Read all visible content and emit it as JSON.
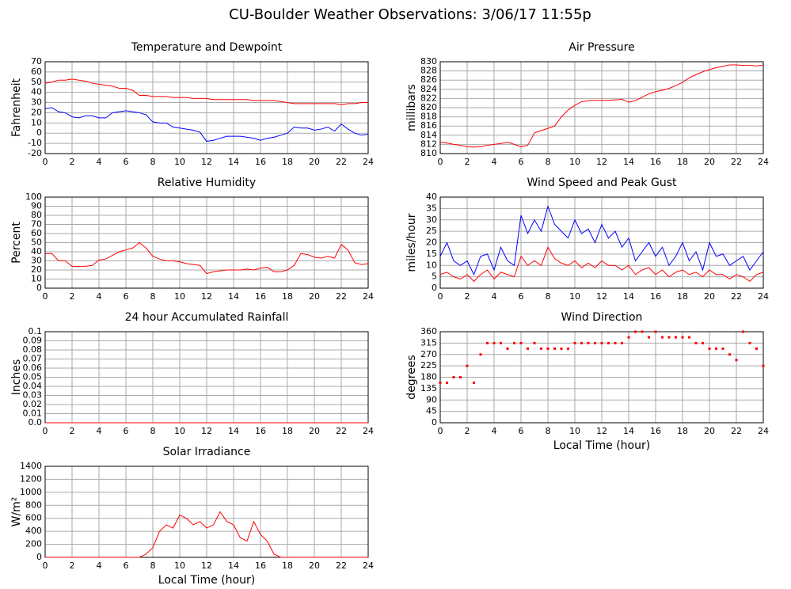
{
  "title": "CU-Boulder Weather Observations: 3/06/17 11:55p",
  "chart_data": [
    {
      "type": "line",
      "title": "Temperature and Dewpoint",
      "y_label": "Fahrenheit",
      "x": [
        0,
        0.5,
        1,
        1.5,
        2,
        2.5,
        3,
        3.5,
        4,
        4.5,
        5,
        5.5,
        6,
        6.5,
        7,
        7.5,
        8,
        8.5,
        9,
        9.5,
        10,
        10.5,
        11,
        11.5,
        12,
        12.5,
        13,
        13.5,
        14,
        14.5,
        15,
        15.5,
        16,
        16.5,
        17,
        17.5,
        18,
        18.5,
        19,
        19.5,
        20,
        20.5,
        21,
        21.5,
        22,
        22.5,
        23,
        23.5,
        24
      ],
      "series": [
        {
          "color": "#ff0000",
          "values": [
            49,
            50,
            52,
            52,
            53,
            52,
            51,
            49,
            48,
            47,
            46,
            44,
            44,
            42,
            37,
            37,
            36,
            36,
            36,
            35,
            35,
            35,
            34,
            34,
            34,
            33,
            33,
            33,
            33,
            33,
            33,
            32,
            32,
            32,
            32,
            31,
            30,
            29,
            29,
            29,
            29,
            29,
            29,
            29,
            28,
            29,
            29,
            30,
            30
          ]
        },
        {
          "color": "#0000ff",
          "values": [
            24,
            25,
            21,
            20,
            16,
            15,
            17,
            17,
            15,
            15,
            20,
            21,
            22,
            21,
            20,
            18,
            11,
            10,
            10,
            6,
            5,
            4,
            3,
            1,
            -8,
            -7,
            -5,
            -3,
            -3,
            -3,
            -4,
            -5,
            -7,
            -5,
            -4,
            -2,
            0,
            6,
            5,
            5,
            3,
            4,
            6,
            2,
            9,
            4,
            0,
            -2,
            -1
          ]
        }
      ],
      "xlim": [
        0,
        24
      ],
      "xticks": [
        0,
        2,
        4,
        6,
        8,
        10,
        12,
        14,
        16,
        18,
        20,
        22,
        24
      ],
      "ylim": [
        -20,
        70
      ],
      "yticks": [
        -20,
        -10,
        0,
        10,
        20,
        30,
        40,
        50,
        60,
        70
      ],
      "grid": true
    },
    {
      "type": "line",
      "title": "Air Pressure",
      "y_label": "millibars",
      "x": [
        0,
        0.5,
        1,
        1.5,
        2,
        2.5,
        3,
        3.5,
        4,
        4.5,
        5,
        5.5,
        6,
        6.5,
        7,
        7.5,
        8,
        8.5,
        9,
        9.5,
        10,
        10.5,
        11,
        11.5,
        12,
        12.5,
        13,
        13.5,
        14,
        14.5,
        15,
        15.5,
        16,
        16.5,
        17,
        17.5,
        18,
        18.5,
        19,
        19.5,
        20,
        20.5,
        21,
        21.5,
        22,
        22.5,
        23,
        23.5,
        24
      ],
      "series": [
        {
          "color": "#ff0000",
          "values": [
            812.5,
            812.3,
            812,
            811.8,
            811.5,
            811.4,
            811.5,
            811.8,
            812,
            812.2,
            812.5,
            812,
            811.5,
            811.8,
            814.5,
            815,
            815.5,
            816,
            818,
            819.5,
            820.5,
            821.3,
            821.5,
            821.6,
            821.6,
            821.6,
            821.7,
            821.8,
            821.2,
            821.5,
            822.3,
            823,
            823.5,
            823.8,
            824.2,
            824.8,
            825.5,
            826.5,
            827.2,
            827.8,
            828.3,
            828.7,
            829,
            829.3,
            829.3,
            829.2,
            829.2,
            829.1,
            829.3
          ]
        }
      ],
      "xlim": [
        0,
        24
      ],
      "xticks": [
        0,
        2,
        4,
        6,
        8,
        10,
        12,
        14,
        16,
        18,
        20,
        22,
        24
      ],
      "ylim": [
        810,
        830
      ],
      "yticks": [
        810,
        812,
        814,
        816,
        818,
        820,
        822,
        824,
        826,
        828,
        830
      ],
      "grid": true
    },
    {
      "type": "line",
      "title": "Relative Humidity",
      "y_label": "Percent",
      "x": [
        0,
        0.5,
        1,
        1.5,
        2,
        2.5,
        3,
        3.5,
        4,
        4.5,
        5,
        5.5,
        6,
        6.5,
        7,
        7.5,
        8,
        8.5,
        9,
        9.5,
        10,
        10.5,
        11,
        11.5,
        12,
        12.5,
        13,
        13.5,
        14,
        14.5,
        15,
        15.5,
        16,
        16.5,
        17,
        17.5,
        18,
        18.5,
        19,
        19.5,
        20,
        20.5,
        21,
        21.5,
        22,
        22.5,
        23,
        23.5,
        24
      ],
      "series": [
        {
          "color": "#ff0000",
          "values": [
            38,
            38,
            30,
            30,
            24,
            24,
            24,
            25,
            31,
            32,
            36,
            40,
            42,
            44,
            50,
            44,
            35,
            32,
            30,
            30,
            29,
            27,
            26,
            25,
            16,
            18,
            19,
            20,
            20,
            20,
            21,
            20,
            22,
            23,
            18,
            18,
            20,
            25,
            38,
            37,
            34,
            33,
            35,
            33,
            48,
            42,
            28,
            26,
            27
          ]
        }
      ],
      "xlim": [
        0,
        24
      ],
      "xticks": [
        0,
        2,
        4,
        6,
        8,
        10,
        12,
        14,
        16,
        18,
        20,
        22,
        24
      ],
      "ylim": [
        0,
        100
      ],
      "yticks": [
        0,
        10,
        20,
        30,
        40,
        50,
        60,
        70,
        80,
        90,
        100
      ],
      "grid": true
    },
    {
      "type": "line",
      "title": "Wind Speed and Peak Gust",
      "y_label": "miles/hour",
      "x": [
        0,
        0.5,
        1,
        1.5,
        2,
        2.5,
        3,
        3.5,
        4,
        4.5,
        5,
        5.5,
        6,
        6.5,
        7,
        7.5,
        8,
        8.5,
        9,
        9.5,
        10,
        10.5,
        11,
        11.5,
        12,
        12.5,
        13,
        13.5,
        14,
        14.5,
        15,
        15.5,
        16,
        16.5,
        17,
        17.5,
        18,
        18.5,
        19,
        19.5,
        20,
        20.5,
        21,
        21.5,
        22,
        22.5,
        23,
        23.5,
        24
      ],
      "series": [
        {
          "color": "#0000ff",
          "values": [
            14,
            20,
            12,
            10,
            12,
            6,
            14,
            15,
            8,
            18,
            12,
            10,
            32,
            24,
            30,
            25,
            36,
            28,
            25,
            22,
            30,
            24,
            26,
            20,
            28,
            22,
            25,
            18,
            22,
            12,
            16,
            20,
            14,
            18,
            10,
            14,
            20,
            12,
            16,
            8,
            20,
            14,
            15,
            10,
            12,
            14,
            8,
            12,
            16
          ]
        },
        {
          "color": "#ff0000",
          "values": [
            6,
            7,
            5,
            4,
            6,
            3,
            6,
            8,
            4,
            7,
            6,
            5,
            14,
            10,
            12,
            10,
            18,
            13,
            11,
            10,
            12,
            9,
            11,
            9,
            12,
            10,
            10,
            8,
            10,
            6,
            8,
            9,
            6,
            8,
            5,
            7,
            8,
            6,
            7,
            5,
            8,
            6,
            6,
            4,
            6,
            5,
            3,
            6,
            7
          ]
        }
      ],
      "xlim": [
        0,
        24
      ],
      "xticks": [
        0,
        2,
        4,
        6,
        8,
        10,
        12,
        14,
        16,
        18,
        20,
        22,
        24
      ],
      "ylim": [
        0,
        40
      ],
      "yticks": [
        0,
        5,
        10,
        15,
        20,
        25,
        30,
        35,
        40
      ],
      "grid": true
    },
    {
      "type": "line",
      "title": "24 hour Accumulated Rainfall",
      "y_label": "Inches",
      "x": [
        0,
        24
      ],
      "series": [
        {
          "color": "#ff0000",
          "values": [
            0,
            0
          ]
        }
      ],
      "xlim": [
        0,
        24
      ],
      "xticks": [
        0,
        2,
        4,
        6,
        8,
        10,
        12,
        14,
        16,
        18,
        20,
        22,
        24
      ],
      "ylim": [
        0,
        0.1
      ],
      "yticks": [
        {
          "value": 0,
          "label": "0.0"
        },
        0.01,
        0.02,
        0.03,
        0.04,
        0.05,
        0.06,
        0.07,
        0.08,
        0.09,
        0.1
      ],
      "grid": true
    },
    {
      "type": "scatter",
      "title": "Wind Direction",
      "y_label": "degrees",
      "x_label": "Local Time (hour)",
      "x": [
        0,
        0.5,
        1,
        1.5,
        2,
        2.5,
        3,
        3.5,
        4,
        4.5,
        5,
        5.5,
        6,
        6.5,
        7,
        7.5,
        8,
        8.5,
        9,
        9.5,
        10,
        10.5,
        11,
        11.5,
        12,
        12.5,
        13,
        13.5,
        14,
        14.5,
        15,
        15.5,
        16,
        16.5,
        17,
        17.5,
        18,
        18.5,
        19,
        19.5,
        20,
        20.5,
        21,
        21.5,
        22,
        22.5,
        23,
        23.5,
        24
      ],
      "series": [
        {
          "color": "#ff0000",
          "values": [
            158,
            158,
            180,
            180,
            225,
            158,
            270,
            315,
            315,
            315,
            293,
            315,
            315,
            293,
            315,
            293,
            293,
            293,
            293,
            293,
            315,
            315,
            315,
            315,
            315,
            315,
            315,
            315,
            338,
            360,
            360,
            338,
            360,
            338,
            338,
            338,
            338,
            338,
            315,
            315,
            293,
            293,
            293,
            270,
            248,
            360,
            315,
            293,
            225
          ]
        }
      ],
      "xlim": [
        0,
        24
      ],
      "xticks": [
        0,
        2,
        4,
        6,
        8,
        10,
        12,
        14,
        16,
        18,
        20,
        22,
        24
      ],
      "ylim": [
        0,
        360
      ],
      "yticks": [
        0,
        45,
        90,
        135,
        180,
        225,
        270,
        315,
        360
      ],
      "grid": true
    },
    {
      "type": "line",
      "title": "Solar Irradiance",
      "y_label": "W/m²",
      "x_label": "Local Time (hour)",
      "x": [
        0,
        0.5,
        1,
        1.5,
        2,
        2.5,
        3,
        3.5,
        4,
        4.5,
        5,
        5.5,
        6,
        6.5,
        7,
        7.5,
        8,
        8.5,
        9,
        9.5,
        10,
        10.5,
        11,
        11.5,
        12,
        12.5,
        13,
        13.5,
        14,
        14.5,
        15,
        15.5,
        16,
        16.5,
        17,
        17.5,
        18,
        18.5,
        19,
        19.5,
        20,
        20.5,
        21,
        21.5,
        22,
        22.5,
        23,
        23.5,
        24
      ],
      "series": [
        {
          "color": "#ff0000",
          "values": [
            0,
            0,
            0,
            0,
            0,
            0,
            0,
            0,
            0,
            0,
            0,
            0,
            0,
            0,
            0,
            50,
            150,
            400,
            500,
            450,
            650,
            600,
            500,
            550,
            450,
            500,
            700,
            550,
            500,
            300,
            250,
            550,
            350,
            250,
            50,
            0,
            0,
            0,
            0,
            0,
            0,
            0,
            0,
            0,
            0,
            0,
            0,
            0,
            0
          ]
        }
      ],
      "xlim": [
        0,
        24
      ],
      "xticks": [
        0,
        2,
        4,
        6,
        8,
        10,
        12,
        14,
        16,
        18,
        20,
        22,
        24
      ],
      "ylim": [
        0,
        1400
      ],
      "yticks": [
        0,
        200,
        400,
        600,
        800,
        1000,
        1200,
        1400
      ],
      "grid": true
    }
  ]
}
